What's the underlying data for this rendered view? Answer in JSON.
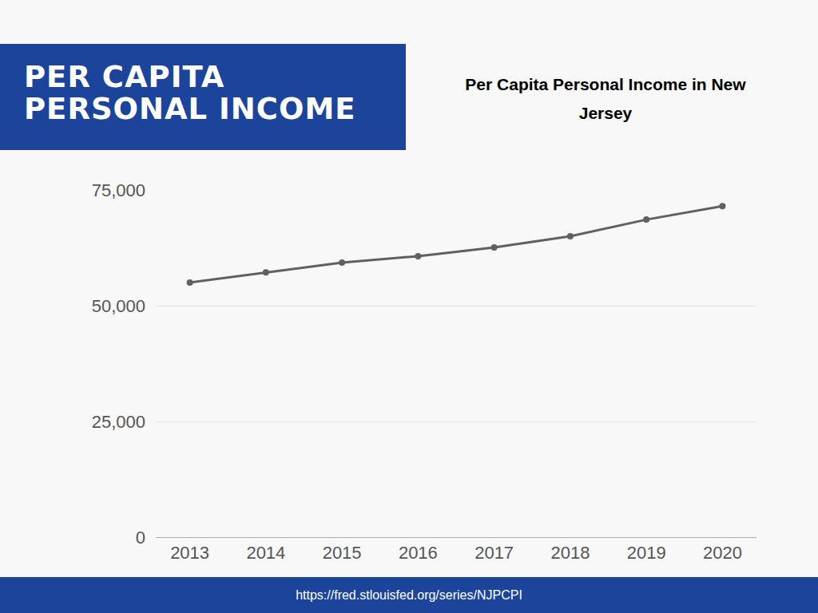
{
  "header": {
    "lines": [
      "PER CAPITA",
      "PERSONAL INCOME"
    ]
  },
  "chart_data": {
    "type": "line",
    "title": "Per Capita Personal Income in New Jersey",
    "categories": [
      "2013",
      "2014",
      "2015",
      "2016",
      "2017",
      "2018",
      "2019",
      "2020"
    ],
    "values": [
      55000,
      57200,
      59300,
      60700,
      62600,
      65000,
      68600,
      71500
    ],
    "color": "#606060",
    "marker": "circle",
    "line_style": "solid",
    "ylim": [
      0,
      75000
    ],
    "yticks": [
      0,
      {
        "value": 25000,
        "label": "25,000"
      },
      {
        "value": 50000,
        "label": "50,000"
      },
      {
        "value": 75000,
        "label": "75,000"
      }
    ],
    "grid": true
  },
  "footer": {
    "text": "https://fred.stlouisfed.org/series/NJPCPI"
  }
}
